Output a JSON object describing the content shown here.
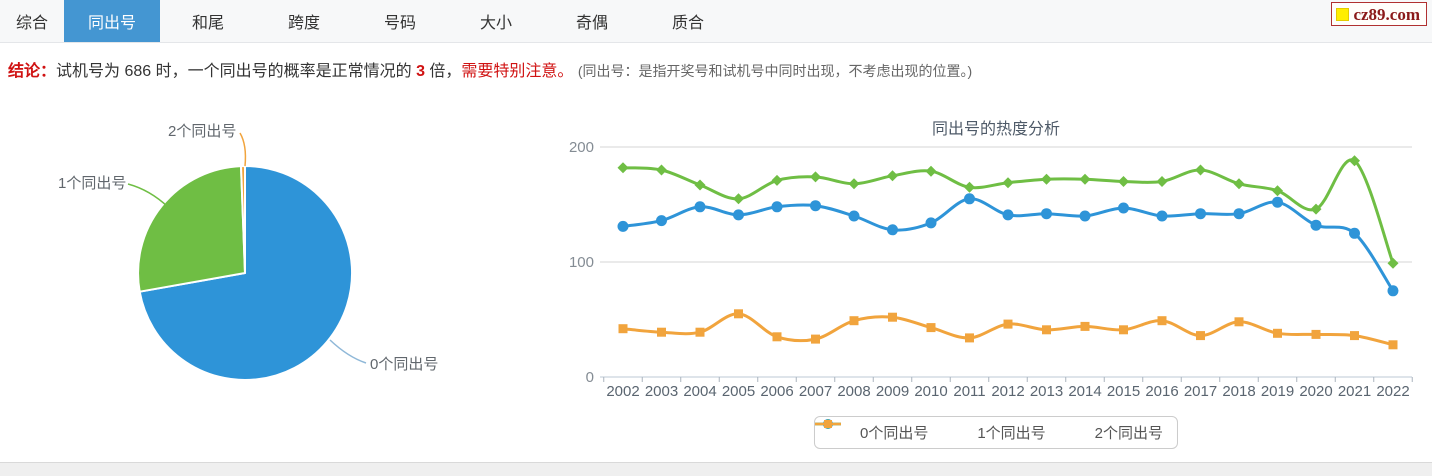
{
  "tabs": {
    "items": [
      {
        "label": "综合",
        "active": false
      },
      {
        "label": "同出号",
        "active": true
      },
      {
        "label": "和尾",
        "active": false
      },
      {
        "label": "跨度",
        "active": false
      },
      {
        "label": "号码",
        "active": false
      },
      {
        "label": "大小",
        "active": false
      },
      {
        "label": "奇偶",
        "active": false
      },
      {
        "label": "质合",
        "active": false
      }
    ]
  },
  "logo": {
    "text": "cz89.com"
  },
  "conclusion": {
    "prefix": "结论：",
    "seg1": "试机号为 686 时，一个同出号的概率是正常情况的 ",
    "multiplier": "3",
    "seg2": " 倍，",
    "warning": "需要特别注意。",
    "note": "(同出号：是指开奖号和试机号中同时出现，不考虑出现的位置。)"
  },
  "colors": {
    "accent_tab_blue": "#4496d2",
    "series_blue": "#2e94d8",
    "series_green": "#6fbe44",
    "series_orange": "#f1a43d",
    "alert_red": "#d01212"
  },
  "chart_data": [
    {
      "type": "pie",
      "start_angle": "top, clockwise",
      "slices": [
        {
          "label": "0个同出号",
          "percent": 72.2,
          "color": "#2e94d8"
        },
        {
          "label": "1个同出号",
          "percent": 27.2,
          "color": "#6fbe44"
        },
        {
          "label": "2个同出号",
          "percent": 0.6,
          "color": "#f1a43d"
        }
      ]
    },
    {
      "type": "line",
      "title": "同出号的热度分析",
      "x": [
        "2002",
        "2003",
        "2004",
        "2005",
        "2006",
        "2007",
        "2008",
        "2009",
        "2010",
        "2011",
        "2012",
        "2013",
        "2014",
        "2015",
        "2016",
        "2017",
        "2018",
        "2019",
        "2020",
        "2021",
        "2022"
      ],
      "ylim": [
        0,
        200
      ],
      "yticks": [
        0,
        100,
        200
      ],
      "grid": true,
      "legend_position": "bottom",
      "series": [
        {
          "name": "0个同出号",
          "color": "#2e94d8",
          "marker": "circle",
          "values": [
            131,
            136,
            148,
            141,
            148,
            149,
            140,
            128,
            134,
            155,
            141,
            142,
            140,
            147,
            140,
            142,
            142,
            152,
            132,
            125,
            75
          ]
        },
        {
          "name": "1个同出号",
          "color": "#6fbe44",
          "marker": "diamond",
          "values": [
            182,
            180,
            167,
            155,
            171,
            174,
            168,
            175,
            179,
            165,
            169,
            172,
            172,
            170,
            170,
            180,
            168,
            162,
            146,
            188,
            99
          ]
        },
        {
          "name": "2个同出号",
          "color": "#f1a43d",
          "marker": "square",
          "values": [
            42,
            39,
            39,
            55,
            35,
            33,
            49,
            52,
            43,
            34,
            46,
            41,
            44,
            41,
            49,
            36,
            48,
            38,
            37,
            36,
            28
          ]
        }
      ]
    }
  ]
}
